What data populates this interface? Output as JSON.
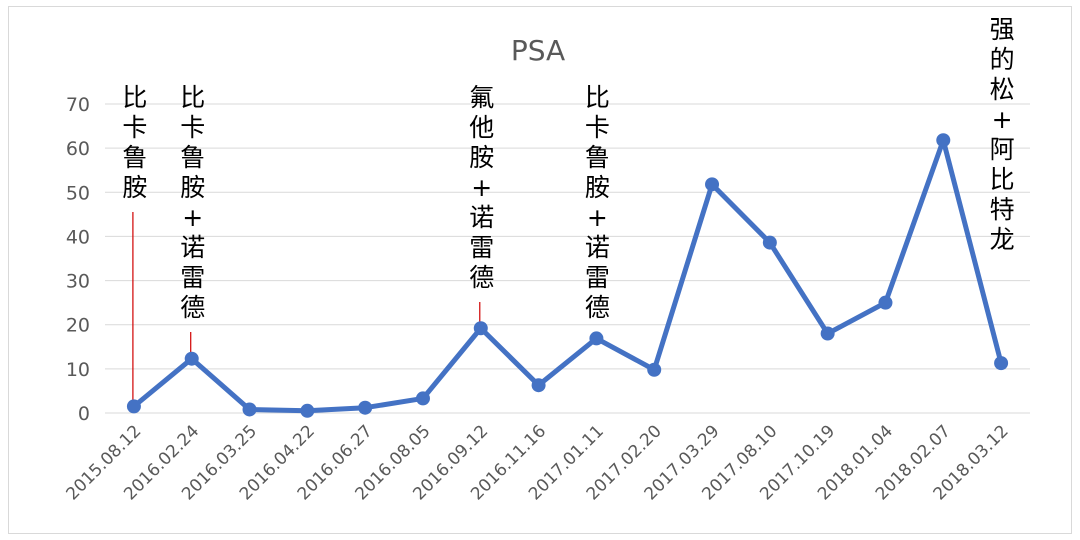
{
  "colors": {
    "series": "#4472C4",
    "annotation_line": "#d00000",
    "grid": "#d9d9d9",
    "text": "#595959"
  },
  "chart_data": {
    "type": "line",
    "title": "PSA",
    "categories": [
      "2015.08.12",
      "2016.02.24",
      "2016.03.25",
      "2016.04.22",
      "2016.06.27",
      "2016.08.05",
      "2016.09.12",
      "2016.11.16",
      "2017.01.11",
      "2017.02.20",
      "2017.03.29",
      "2017.08.10",
      "2017.10.19",
      "2018.01.04",
      "2018.02.07",
      "2018.03.12"
    ],
    "values": [
      1.5,
      12.3,
      0.8,
      0.5,
      1.2,
      3.3,
      19.2,
      6.3,
      16.9,
      9.8,
      51.8,
      38.6,
      18.0,
      25.0,
      61.8,
      11.3
    ],
    "ylim": [
      0,
      70
    ],
    "yticks": [
      0,
      10,
      20,
      30,
      40,
      50,
      60,
      70
    ],
    "grid": true,
    "legend": "none",
    "annotations": [
      {
        "index": 0,
        "text": "比卡鲁胺"
      },
      {
        "index": 1,
        "text": "比卡鲁胺+诺雷德"
      },
      {
        "index": 6,
        "text": "氟他胺+诺雷德"
      },
      {
        "index": 8,
        "text": "比卡鲁胺+诺雷德"
      },
      {
        "index": 15,
        "text": "强的松+阿比特龙"
      }
    ]
  }
}
